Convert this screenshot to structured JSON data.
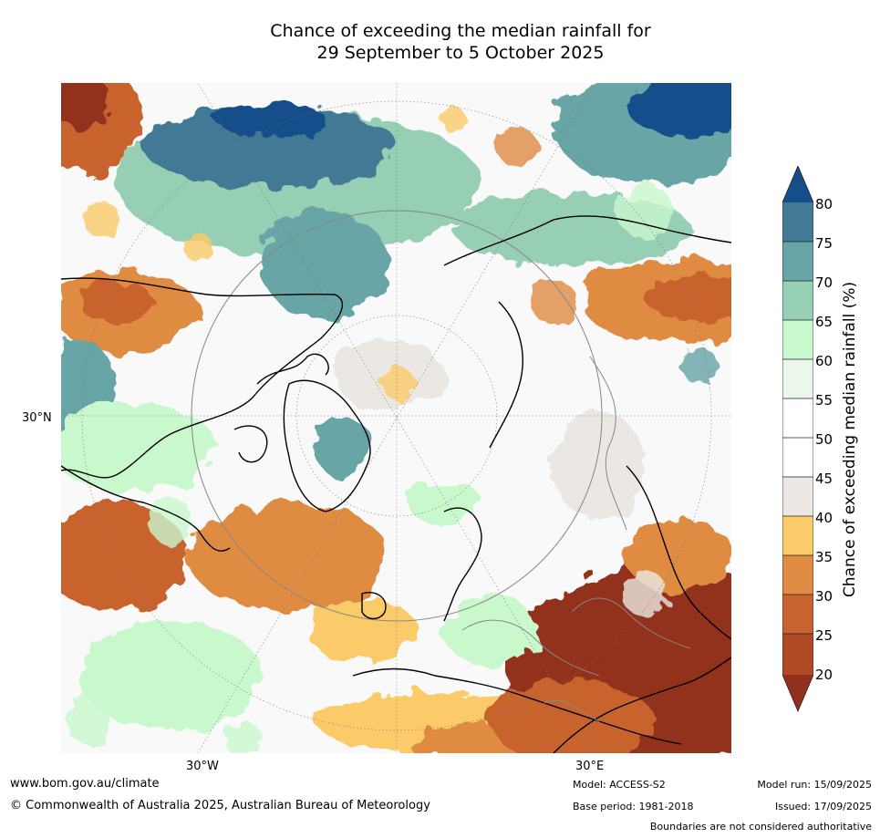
{
  "title": {
    "line1": "Chance of exceeding the median rainfall for",
    "line2": "29 September to 5 October 2025"
  },
  "map_labels": {
    "lat_30n": "30°N",
    "lon_30w": "30°W",
    "lon_30e": "30°E"
  },
  "colorbar": {
    "label": "Chance of exceeding median rainfall (%)",
    "ticks": [
      "80",
      "75",
      "70",
      "65",
      "60",
      "55",
      "50",
      "45",
      "40",
      "35",
      "30",
      "25",
      "20"
    ],
    "colors": {
      "below_20": "#93301b",
      "20_25": "#b04a25",
      "25_30": "#c8632f",
      "30_35": "#e08b43",
      "35_40": "#fbcb6a",
      "40_45": "#ebe8e3",
      "45_50": "#ffffff",
      "50_55": "#ffffff",
      "55_60": "#ebf7ea",
      "60_65": "#c9f8cd",
      "65_70": "#96cfb4",
      "70_75": "#68a5a6",
      "75_80": "#437a96",
      "above_80": "#164e8b"
    }
  },
  "footer": {
    "website": "www.bom.gov.au/climate",
    "copyright": "© Commonwealth of Australia 2025, Australian Bureau of Meteorology",
    "model": "Model: ACCESS-S2",
    "base_period": "Base period: 1981-2018",
    "model_run": "Model run: 15/09/2025",
    "issued": "Issued: 17/09/2025",
    "disclaimer": "Boundaries are not considered authoritative"
  }
}
